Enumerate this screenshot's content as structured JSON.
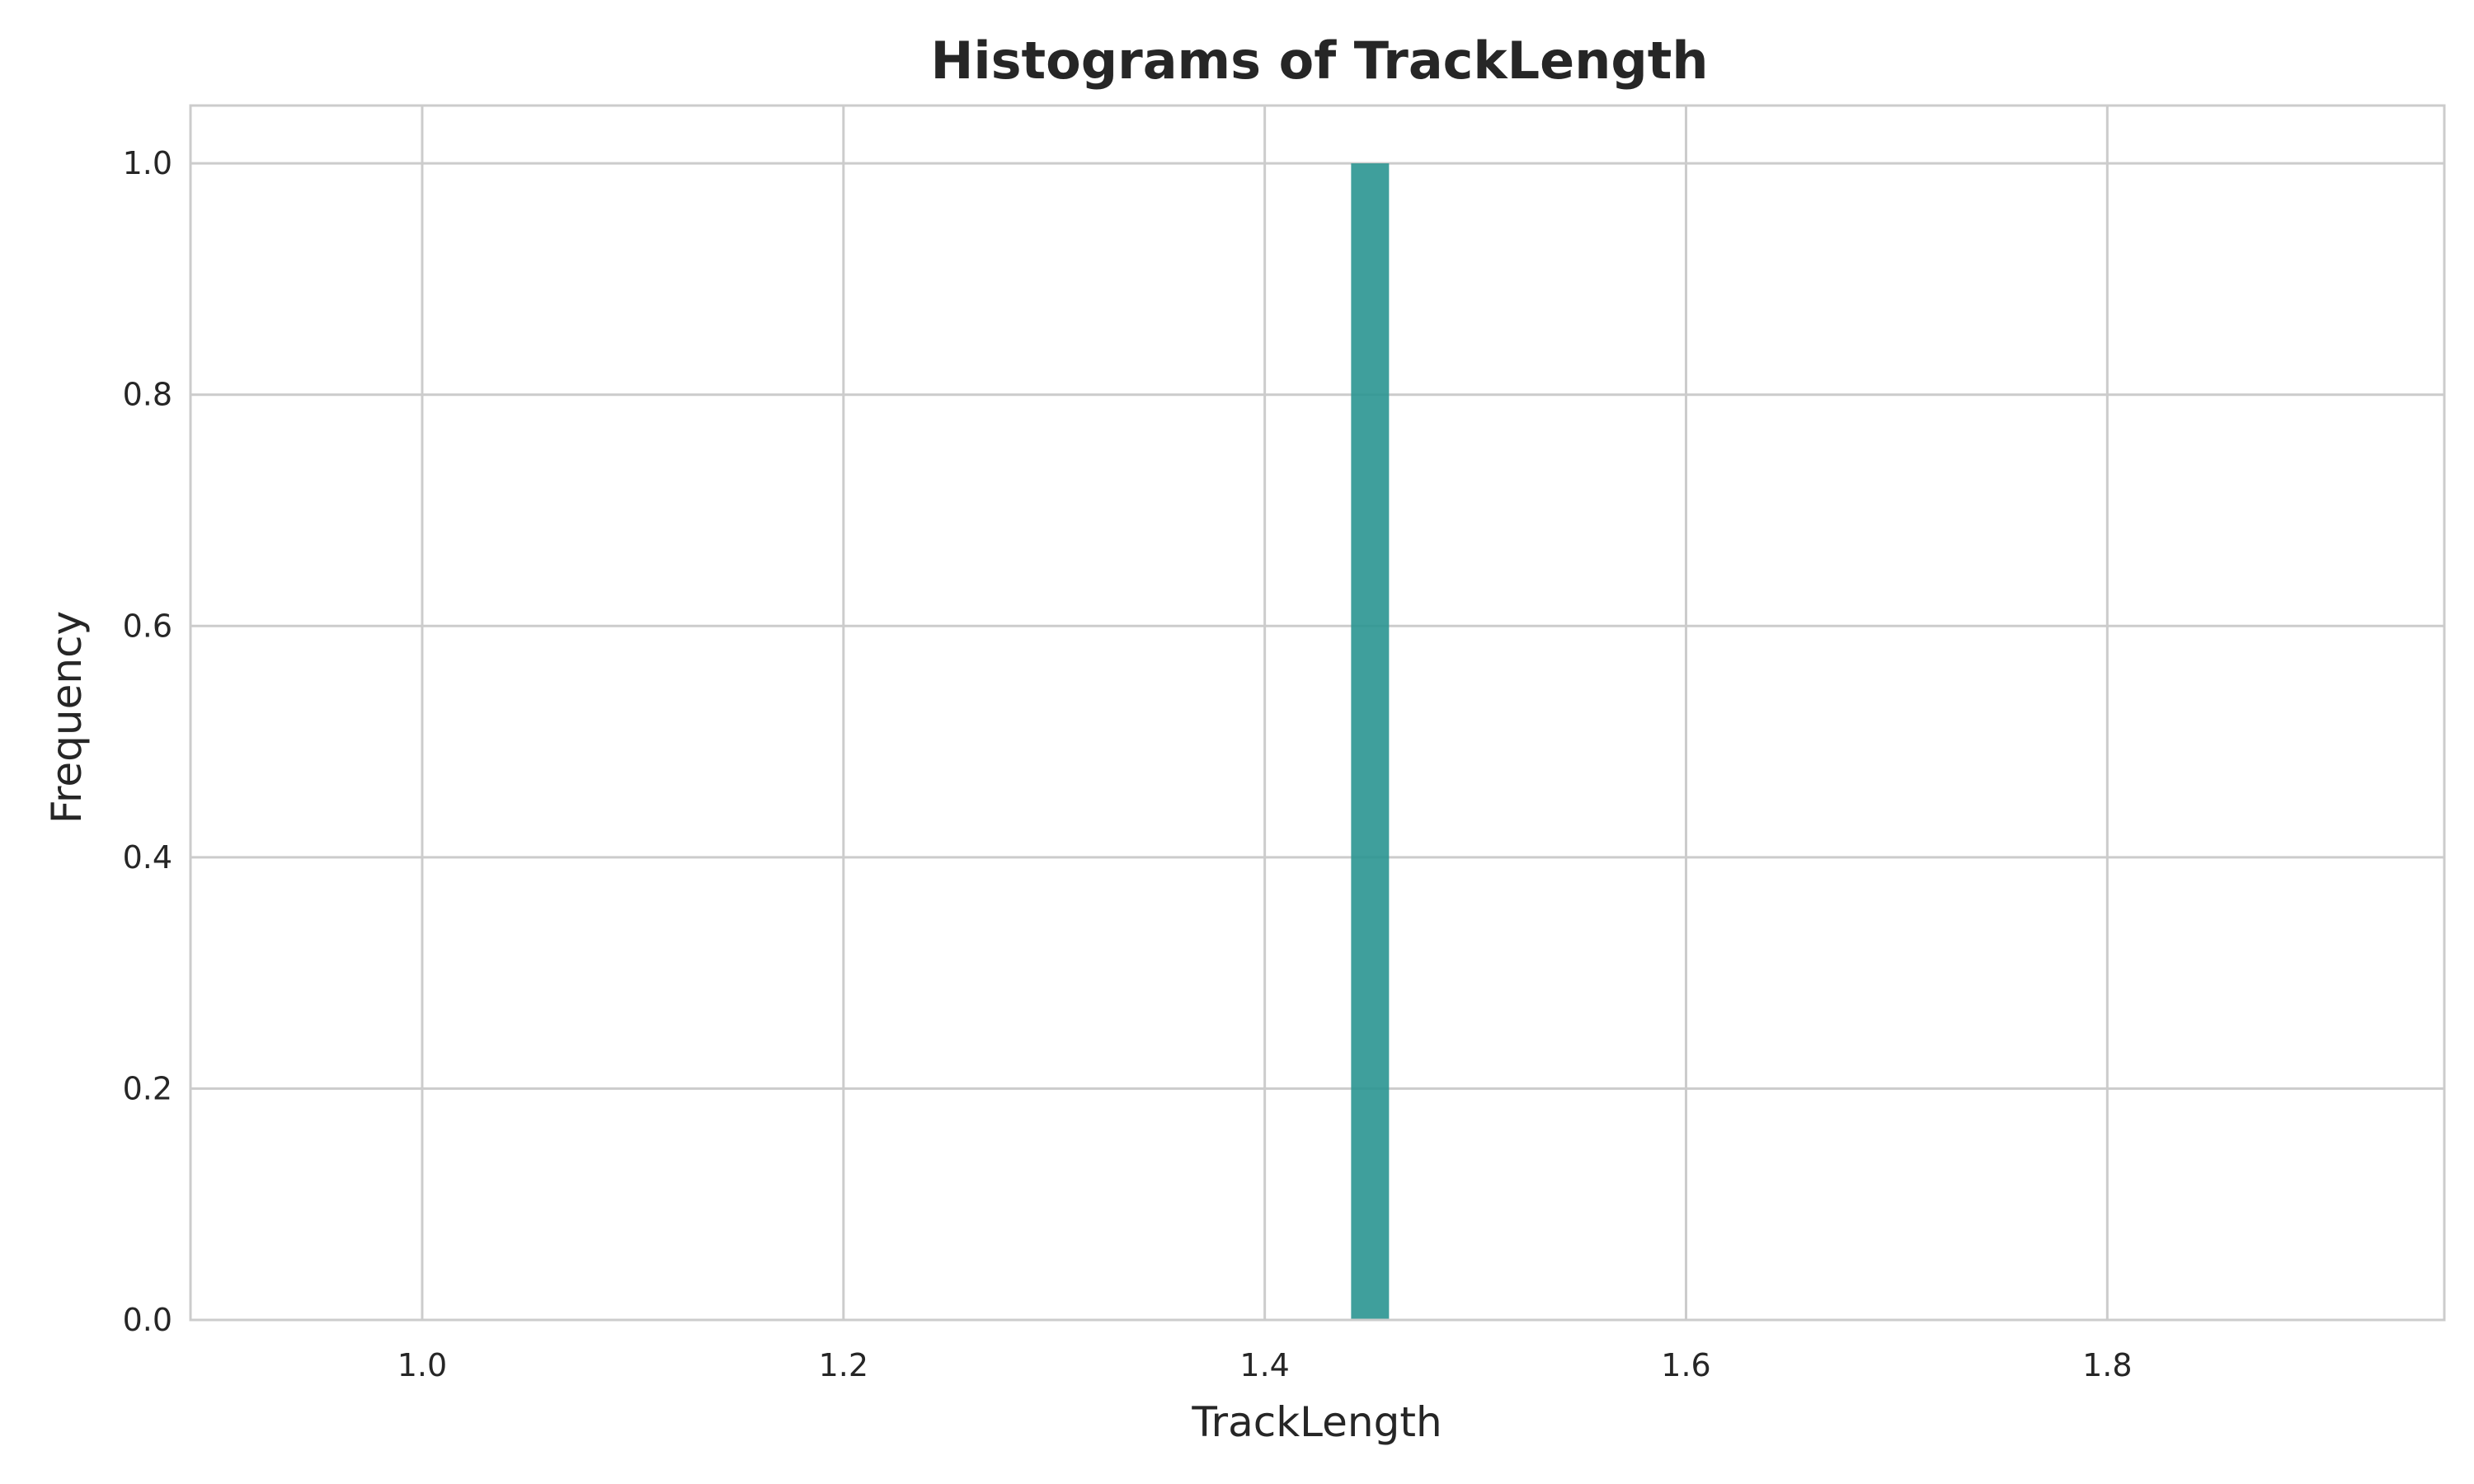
{
  "chart_data": {
    "type": "bar",
    "title": "Histograms of TrackLength",
    "xlabel": "TrackLength",
    "ylabel": "Frequency",
    "xlim": [
      0.89,
      1.96
    ],
    "ylim": [
      0,
      1.05
    ],
    "xticks": [
      1.0,
      1.2,
      1.4,
      1.6,
      1.8
    ],
    "xtick_labels": [
      "1.0",
      "1.2",
      "1.4",
      "1.6",
      "1.8"
    ],
    "yticks": [
      0.0,
      0.2,
      0.4,
      0.6,
      0.8,
      1.0
    ],
    "ytick_labels": [
      "0.0",
      "0.2",
      "0.4",
      "0.6",
      "0.8",
      "1.0"
    ],
    "grid": true,
    "bars": [
      {
        "x_start": 1.441,
        "x_end": 1.459,
        "value": 1
      }
    ],
    "colors": {
      "bar": "#2a9591",
      "grid": "#cccccc",
      "spine": "#cccccc",
      "text": "#262626"
    }
  }
}
